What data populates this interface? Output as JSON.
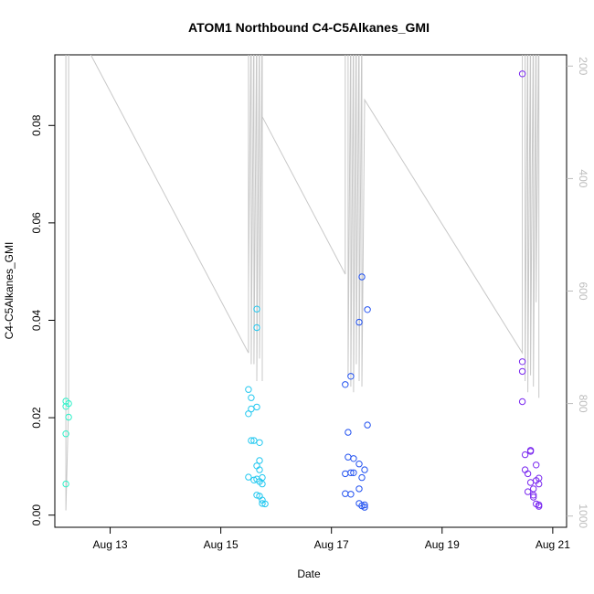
{
  "chart_data": {
    "type": "scatter",
    "title": "ATOM1 Northbound C4-C5Alkanes_GMI",
    "xlabel": "Date",
    "ylabel": "C4-C5Alkanes_GMI",
    "x_ticks": [
      "Aug 13",
      "Aug 15",
      "Aug 17",
      "Aug 19",
      "Aug 21"
    ],
    "y_ticks": [
      "0.00",
      "0.02",
      "0.04",
      "0.06",
      "0.08"
    ],
    "y2_ticks": [
      "200",
      "400",
      "600",
      "800",
      "1000"
    ],
    "xlim": [
      "2023-08-12 00:00",
      "2023-08-21 06:00"
    ],
    "ylim": [
      -0.0025,
      0.0945
    ],
    "y2lim": [
      1020,
      180
    ],
    "y2_reversed": true,
    "grid": false,
    "point_colors": [
      "#2ef0c8",
      "#22c8f0",
      "#2050f0",
      "#7a28f0"
    ],
    "line_color": "#c8c8c8",
    "series": [
      {
        "group": 1,
        "points": [
          [
            "2023-08-12 04:48",
            0.0234
          ],
          [
            "2023-08-12 04:48",
            0.0223
          ],
          [
            "2023-08-12 06:00",
            0.0229
          ],
          [
            "2023-08-12 06:00",
            0.0201
          ],
          [
            "2023-08-12 04:48",
            0.0167
          ],
          [
            "2023-08-12 04:48",
            0.0064
          ]
        ]
      },
      {
        "group": 2,
        "points": [
          [
            "2023-08-15 12:00",
            0.0258
          ],
          [
            "2023-08-15 13:12",
            0.0241
          ],
          [
            "2023-08-15 13:12",
            0.0218
          ],
          [
            "2023-08-15 15:36",
            0.0222
          ],
          [
            "2023-08-15 12:00",
            0.0208
          ],
          [
            "2023-08-15 15:36",
            0.0423
          ],
          [
            "2023-08-15 15:36",
            0.0385
          ],
          [
            "2023-08-15 13:12",
            0.0153
          ],
          [
            "2023-08-15 14:24",
            0.0153
          ],
          [
            "2023-08-15 16:48",
            0.0149
          ],
          [
            "2023-08-15 16:48",
            0.0112
          ],
          [
            "2023-08-15 15:36",
            0.0101
          ],
          [
            "2023-08-15 16:48",
            0.0093
          ],
          [
            "2023-08-15 12:00",
            0.0078
          ],
          [
            "2023-08-15 14:24",
            0.0072
          ],
          [
            "2023-08-15 15:36",
            0.0074
          ],
          [
            "2023-08-15 18:00",
            0.0077
          ],
          [
            "2023-08-15 16:48",
            0.0069
          ],
          [
            "2023-08-15 18:00",
            0.0064
          ],
          [
            "2023-08-15 15:36",
            0.0041
          ],
          [
            "2023-08-15 16:48",
            0.0039
          ],
          [
            "2023-08-15 18:00",
            0.0031
          ],
          [
            "2023-08-15 18:00",
            0.0024
          ],
          [
            "2023-08-15 19:12",
            0.0023
          ]
        ]
      },
      {
        "group": 3,
        "points": [
          [
            "2023-08-17 13:12",
            0.0489
          ],
          [
            "2023-08-17 15:36",
            0.0422
          ],
          [
            "2023-08-17 12:00",
            0.0396
          ],
          [
            "2023-08-17 08:24",
            0.0285
          ],
          [
            "2023-08-17 06:00",
            0.0268
          ],
          [
            "2023-08-17 15:36",
            0.0185
          ],
          [
            "2023-08-17 07:12",
            0.017
          ],
          [
            "2023-08-17 07:12",
            0.0119
          ],
          [
            "2023-08-17 09:36",
            0.0116
          ],
          [
            "2023-08-17 12:00",
            0.0105
          ],
          [
            "2023-08-17 14:24",
            0.0093
          ],
          [
            "2023-08-17 06:00",
            0.0085
          ],
          [
            "2023-08-17 08:24",
            0.0087
          ],
          [
            "2023-08-17 09:36",
            0.0087
          ],
          [
            "2023-08-17 13:12",
            0.0077
          ],
          [
            "2023-08-17 06:00",
            0.0044
          ],
          [
            "2023-08-17 08:24",
            0.0043
          ],
          [
            "2023-08-17 12:00",
            0.0054
          ],
          [
            "2023-08-17 12:00",
            0.0024
          ],
          [
            "2023-08-17 13:12",
            0.0019
          ],
          [
            "2023-08-17 14:24",
            0.0021
          ],
          [
            "2023-08-17 14:24",
            0.0016
          ]
        ]
      },
      {
        "group": 4,
        "points": [
          [
            "2023-08-20 10:48",
            0.0906
          ],
          [
            "2023-08-20 10:48",
            0.0315
          ],
          [
            "2023-08-20 10:48",
            0.0295
          ],
          [
            "2023-08-20 10:48",
            0.0233
          ],
          [
            "2023-08-20 14:24",
            0.0133
          ],
          [
            "2023-08-20 14:24",
            0.0131
          ],
          [
            "2023-08-20 12:00",
            0.0124
          ],
          [
            "2023-08-20 16:48",
            0.0103
          ],
          [
            "2023-08-20 12:00",
            0.0093
          ],
          [
            "2023-08-20 13:12",
            0.0085
          ],
          [
            "2023-08-20 18:00",
            0.0076
          ],
          [
            "2023-08-20 14:24",
            0.0067
          ],
          [
            "2023-08-20 16:48",
            0.0071
          ],
          [
            "2023-08-20 18:00",
            0.0064
          ],
          [
            "2023-08-20 15:36",
            0.0054
          ],
          [
            "2023-08-20 13:12",
            0.0048
          ],
          [
            "2023-08-20 15:36",
            0.0041
          ],
          [
            "2023-08-20 15:36",
            0.0037
          ],
          [
            "2023-08-20 16:48",
            0.0023
          ],
          [
            "2023-08-20 18:00",
            0.0021
          ],
          [
            "2023-08-20 18:00",
            0.0018
          ]
        ]
      }
    ],
    "line_series": [
      {
        "axis": "y2",
        "points": [
          [
            "2023-08-12 04:48",
            100
          ],
          [
            "2023-08-12 04:48",
            360
          ],
          [
            "2023-08-12 04:48",
            840
          ],
          [
            "2023-08-12 04:48",
            990
          ],
          [
            "2023-08-12 06:00",
            800
          ],
          [
            "2023-08-12 06:00",
            100
          ],
          [
            "2023-08-12 06:00",
            130
          ],
          [
            "2023-08-12 15:36",
            180
          ],
          [
            "2023-08-15 12:00",
            710
          ],
          [
            "2023-08-15 12:00",
            100
          ],
          [
            "2023-08-15 12:00",
            600
          ],
          [
            "2023-08-15 13:12",
            100
          ],
          [
            "2023-08-15 13:12",
            730
          ],
          [
            "2023-08-15 14:24",
            100
          ],
          [
            "2023-08-15 14:24",
            730
          ],
          [
            "2023-08-15 15:36",
            100
          ],
          [
            "2023-08-15 15:36",
            760
          ],
          [
            "2023-08-15 16:48",
            100
          ],
          [
            "2023-08-15 16:48",
            720
          ],
          [
            "2023-08-15 18:00",
            100
          ],
          [
            "2023-08-15 18:00",
            760
          ],
          [
            "2023-08-15 18:00",
            290
          ],
          [
            "2023-08-17 06:00",
            570
          ],
          [
            "2023-08-17 06:00",
            100
          ],
          [
            "2023-08-17 07:12",
            100
          ],
          [
            "2023-08-17 07:12",
            750
          ],
          [
            "2023-08-17 08:24",
            100
          ],
          [
            "2023-08-17 08:24",
            770
          ],
          [
            "2023-08-17 09:36",
            100
          ],
          [
            "2023-08-17 09:36",
            780
          ],
          [
            "2023-08-17 10:48",
            100
          ],
          [
            "2023-08-17 10:48",
            730
          ],
          [
            "2023-08-17 12:00",
            100
          ],
          [
            "2023-08-17 12:00",
            760
          ],
          [
            "2023-08-17 13:12",
            100
          ],
          [
            "2023-08-17 13:12",
            770
          ],
          [
            "2023-08-17 14:24",
            260
          ],
          [
            "2023-08-20 10:48",
            710
          ],
          [
            "2023-08-20 10:48",
            100
          ],
          [
            "2023-08-20 12:00",
            100
          ],
          [
            "2023-08-20 12:00",
            760
          ],
          [
            "2023-08-20 13:12",
            100
          ],
          [
            "2023-08-20 13:12",
            780
          ],
          [
            "2023-08-20 14:24",
            100
          ],
          [
            "2023-08-20 14:24",
            750
          ],
          [
            "2023-08-20 15:36",
            100
          ],
          [
            "2023-08-20 15:36",
            770
          ],
          [
            "2023-08-20 16:48",
            100
          ],
          [
            "2023-08-20 16:48",
            620
          ],
          [
            "2023-08-20 18:00",
            100
          ],
          [
            "2023-08-20 18:00",
            790
          ]
        ]
      }
    ]
  }
}
